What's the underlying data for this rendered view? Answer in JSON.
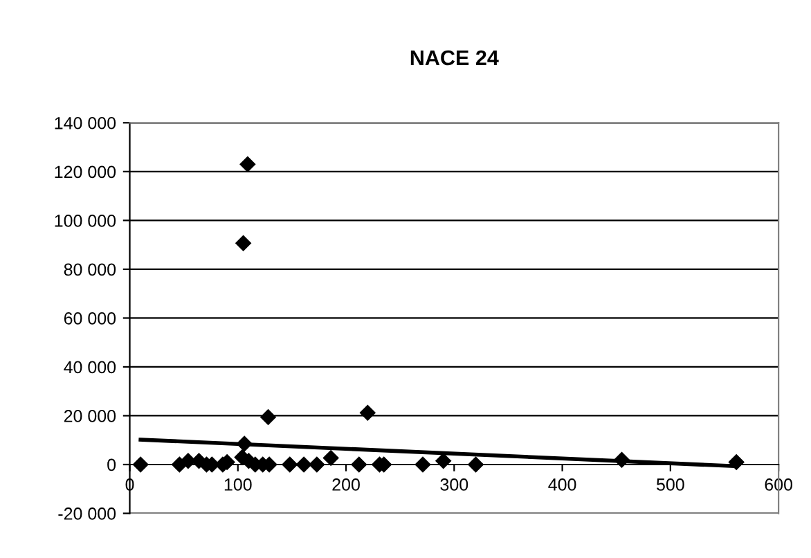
{
  "chart_data": {
    "type": "scatter",
    "title": "NACE 24",
    "grid": "y",
    "xlim": [
      0,
      600
    ],
    "ylim": [
      -20000,
      140000
    ],
    "xticks": [
      0,
      100,
      200,
      300,
      400,
      500,
      600
    ],
    "yticks": [
      {
        "value": -20000,
        "label": "-20 000"
      },
      {
        "value": 0,
        "label": "0"
      },
      {
        "value": 20000,
        "label": "20 000"
      },
      {
        "value": 40000,
        "label": "40 000"
      },
      {
        "value": 60000,
        "label": "60 000"
      },
      {
        "value": 80000,
        "label": "80 000"
      },
      {
        "value": 100000,
        "label": "100 000"
      },
      {
        "value": 120000,
        "label": "120 000"
      },
      {
        "value": 140000,
        "label": "140 000"
      }
    ],
    "series": [
      {
        "color": "#000000",
        "marker": "diamond",
        "x": [
          10,
          46,
          54,
          64,
          71,
          76,
          86,
          90,
          105,
          109,
          106,
          104,
          110,
          116,
          123,
          129,
          148,
          161,
          173,
          186,
          212,
          231,
          235,
          271,
          290,
          320,
          455,
          561,
          128,
          220
        ],
        "values": [
          0,
          0,
          1500,
          1500,
          0,
          0,
          0,
          1000,
          90700,
          123000,
          8500,
          3000,
          1500,
          0,
          0,
          0,
          0,
          0,
          0,
          2700,
          0,
          0,
          0,
          0,
          1500,
          0,
          1900,
          1000,
          19400,
          21200
        ]
      },
      {
        "type": "line",
        "color": "#000000",
        "x": [
          10,
          561
        ],
        "values": [
          10200,
          -700
        ]
      }
    ]
  }
}
